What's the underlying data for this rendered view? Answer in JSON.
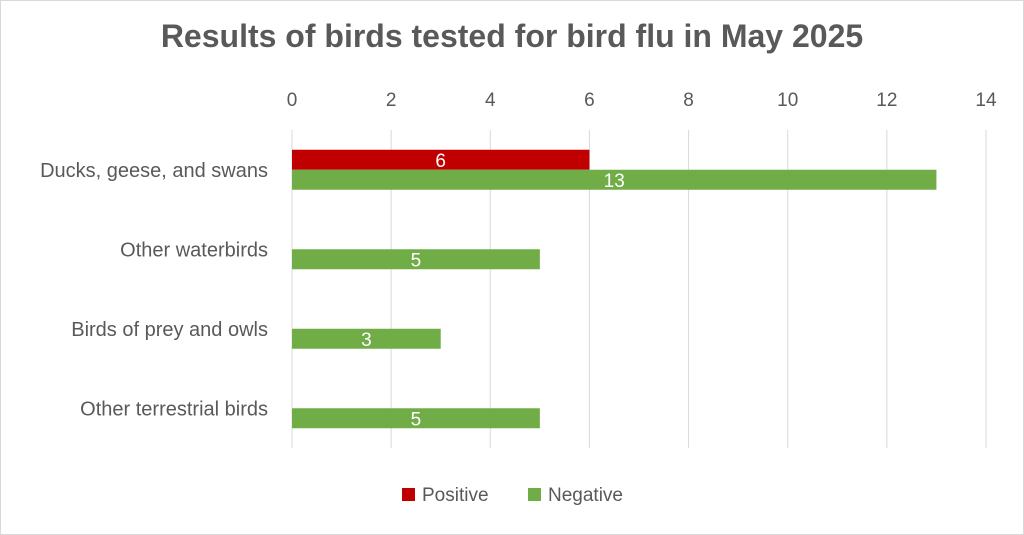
{
  "chart_data": {
    "type": "bar",
    "orientation": "horizontal",
    "title": "Results of birds tested for bird flu in May 2025",
    "categories": [
      "Ducks, geese, and swans",
      "Other waterbirds",
      "Birds of prey and owls",
      "Other terrestrial birds"
    ],
    "series": [
      {
        "name": "Positive",
        "color": "#c00000",
        "values": [
          6,
          null,
          null,
          null
        ]
      },
      {
        "name": "Negative",
        "color": "#70ad47",
        "values": [
          13,
          5,
          3,
          5
        ]
      }
    ],
    "xlim": [
      0,
      14
    ],
    "xticks": [
      "0",
      "2",
      "4",
      "6",
      "8",
      "10",
      "12",
      "14"
    ],
    "x_axis_position": "top",
    "grid": true,
    "legend_position": "bottom"
  }
}
